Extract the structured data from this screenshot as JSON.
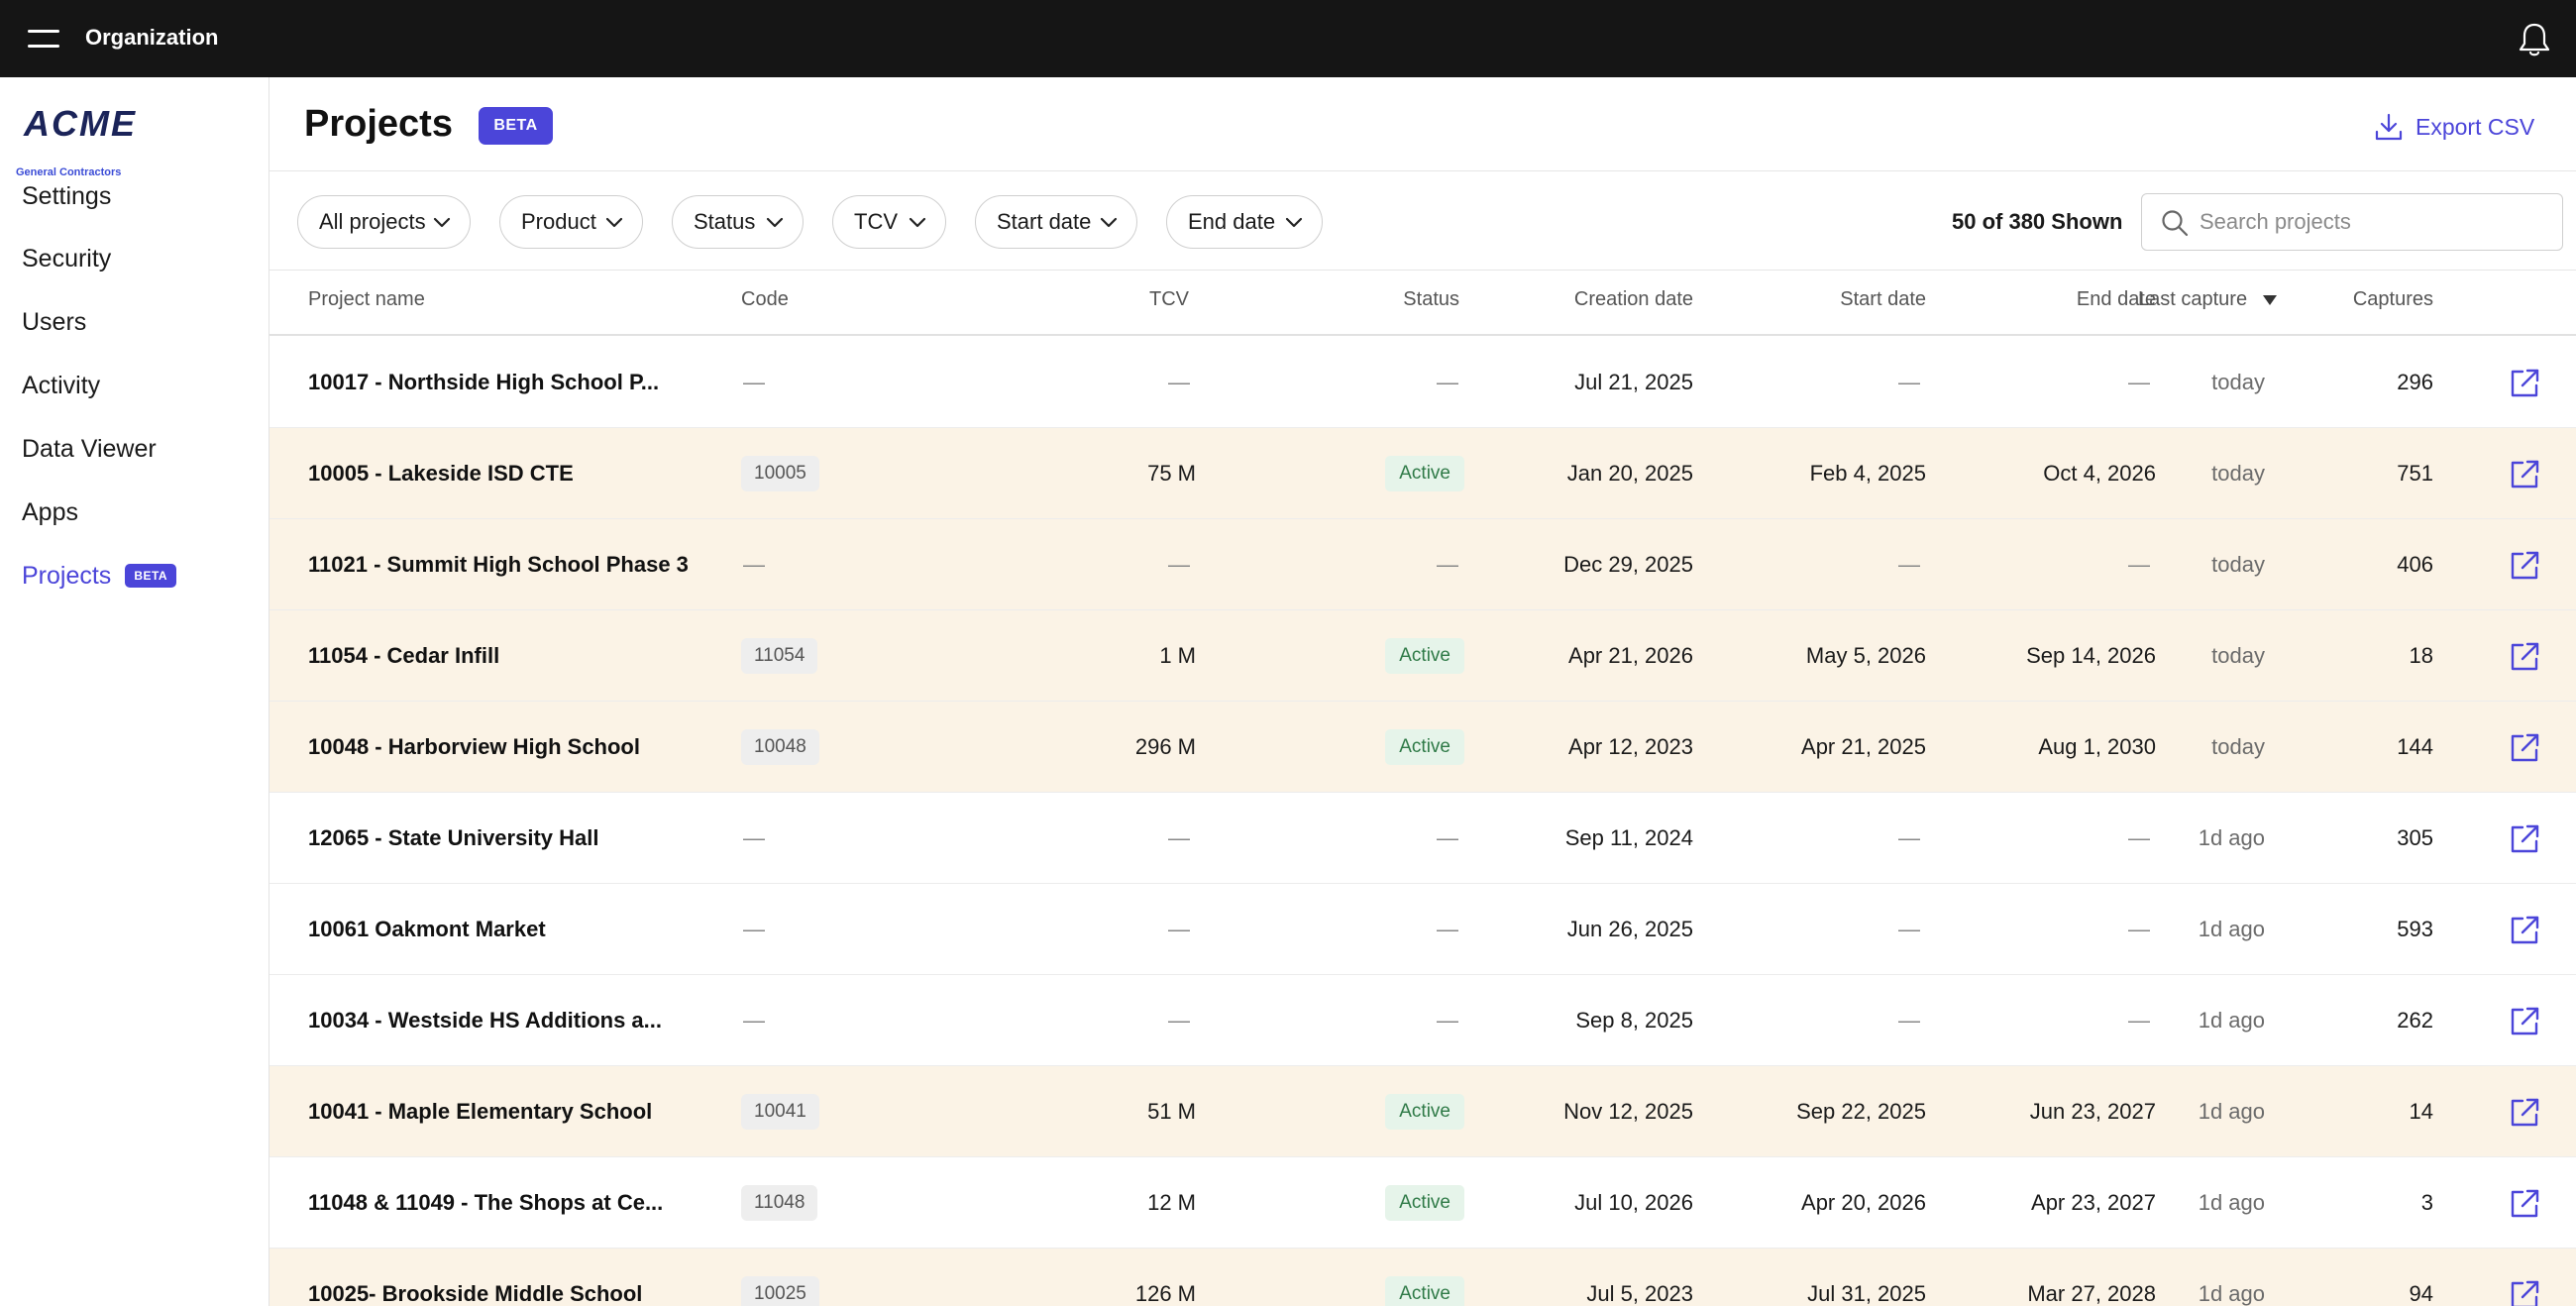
{
  "topbar": {
    "title": "Organization"
  },
  "logo": {
    "name": "ACME",
    "subtitle": "General Contractors"
  },
  "sidebar": {
    "items": [
      {
        "label": "Settings",
        "active": false
      },
      {
        "label": "Security",
        "active": false
      },
      {
        "label": "Users",
        "active": false
      },
      {
        "label": "Activity",
        "active": false
      },
      {
        "label": "Data Viewer",
        "active": false
      },
      {
        "label": "Apps",
        "active": false
      },
      {
        "label": "Projects",
        "active": true,
        "badge": "BETA"
      }
    ]
  },
  "header": {
    "title": "Projects",
    "badge": "BETA",
    "export_label": "Export CSV"
  },
  "filters": [
    "All projects",
    "Product",
    "Status",
    "TCV",
    "Start date",
    "End date"
  ],
  "shown_count": "50 of 380 Shown",
  "search": {
    "placeholder": "Search projects",
    "value": ""
  },
  "table": {
    "columns": {
      "name": "Project name",
      "code": "Code",
      "tcv": "TCV",
      "status": "Status",
      "created": "Creation date",
      "start": "Start date",
      "end": "End date",
      "last_capture": "Last capture",
      "captures": "Captures"
    },
    "sort": {
      "column": "last_capture",
      "direction": "desc"
    },
    "empty_placeholder": "—",
    "rows": [
      {
        "name": "10017 - Northside High School P...",
        "code": "",
        "tcv": "",
        "status": "",
        "created": "Jul 21, 2025",
        "start": "",
        "end": "",
        "last_capture": "today",
        "captures": "296",
        "highlighted": false
      },
      {
        "name": "10005 - Lakeside ISD CTE",
        "code": "10005",
        "tcv": "75 M",
        "status": "Active",
        "created": "Jan 20, 2025",
        "start": "Feb 4, 2025",
        "end": "Oct 4, 2026",
        "last_capture": "today",
        "captures": "751",
        "highlighted": true
      },
      {
        "name": "11021 - Summit High School Phase 3",
        "code": "",
        "tcv": "",
        "status": "",
        "created": "Dec 29, 2025",
        "start": "",
        "end": "",
        "last_capture": "today",
        "captures": "406",
        "highlighted": true
      },
      {
        "name": "11054 - Cedar Infill",
        "code": "11054",
        "tcv": "1 M",
        "status": "Active",
        "created": "Apr 21, 2026",
        "start": "May 5, 2026",
        "end": "Sep 14, 2026",
        "last_capture": "today",
        "captures": "18",
        "highlighted": true
      },
      {
        "name": "10048 - Harborview High School",
        "code": "10048",
        "tcv": "296 M",
        "status": "Active",
        "created": "Apr 12, 2023",
        "start": "Apr 21, 2025",
        "end": "Aug 1, 2030",
        "last_capture": "today",
        "captures": "144",
        "highlighted": true
      },
      {
        "name": "12065 - State University Hall",
        "code": "",
        "tcv": "",
        "status": "",
        "created": "Sep 11, 2024",
        "start": "",
        "end": "",
        "last_capture": "1d ago",
        "captures": "305",
        "highlighted": false
      },
      {
        "name": "10061 Oakmont Market",
        "code": "",
        "tcv": "",
        "status": "",
        "created": "Jun 26, 2025",
        "start": "",
        "end": "",
        "last_capture": "1d ago",
        "captures": "593",
        "highlighted": false
      },
      {
        "name": "10034 - Westside HS Additions a...",
        "code": "",
        "tcv": "",
        "status": "",
        "created": "Sep 8, 2025",
        "start": "",
        "end": "",
        "last_capture": "1d ago",
        "captures": "262",
        "highlighted": false
      },
      {
        "name": "10041 - Maple Elementary School",
        "code": "10041",
        "tcv": "51 M",
        "status": "Active",
        "created": "Nov 12, 2025",
        "start": "Sep 22, 2025",
        "end": "Jun 23, 2027",
        "last_capture": "1d ago",
        "captures": "14",
        "highlighted": true
      },
      {
        "name": "11048 & 11049 - The Shops at Ce...",
        "code": "11048",
        "tcv": "12 M",
        "status": "Active",
        "created": "Jul 10, 2026",
        "start": "Apr 20, 2026",
        "end": "Apr 23, 2027",
        "last_capture": "1d ago",
        "captures": "3",
        "highlighted": false
      },
      {
        "name": "10025- Brookside Middle School",
        "code": "10025",
        "tcv": "126 M",
        "status": "Active",
        "created": "Jul 5, 2023",
        "start": "Jul 31, 2025",
        "end": "Mar 27, 2028",
        "last_capture": "1d ago",
        "captures": "94",
        "highlighted": true
      }
    ]
  },
  "icons": {
    "menu": "hamburger-icon",
    "notifications": "bell-icon",
    "export": "download-icon",
    "filter_dropdown": "chevron-down-icon",
    "search": "search-icon",
    "sort": "caret-down-icon",
    "row_action": "external-link-icon"
  },
  "colors": {
    "accent": "#4b45d9",
    "topbar_bg": "#151515",
    "row_highlight": "#fbf3e6",
    "status_active_bg": "#e6f4ea",
    "status_active_text": "#2f7a47"
  }
}
